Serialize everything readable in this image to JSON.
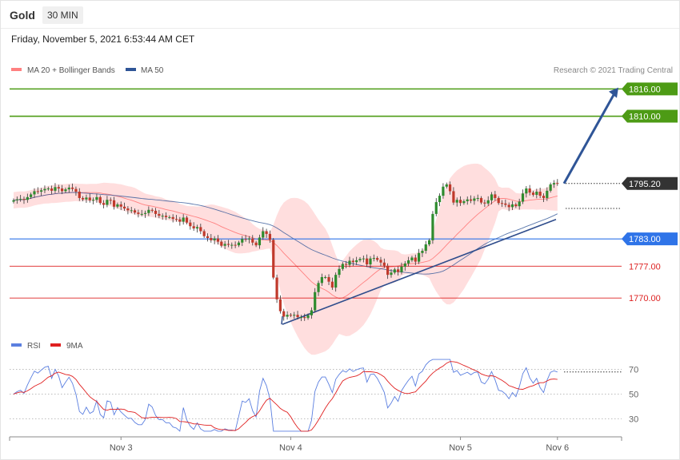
{
  "header": {
    "instrument": "Gold",
    "timeframe": "30 MIN",
    "datetime": "Friday, November 5, 2021 6:53:44 AM CET"
  },
  "legend": {
    "ma20": "MA 20 + Bollinger Bands",
    "ma50": "MA 50",
    "copyright": "Research © 2021 Trading Central",
    "rsi": "RSI",
    "rsi_ma": "9MA"
  },
  "colors": {
    "up": "#2e8b2e",
    "down": "#c0392b",
    "resistance": "#4d9b15",
    "support_blue": "#2f74e8",
    "support_red": "#dd2222",
    "ma20": "#ff8080",
    "ma50": "#2f5597",
    "band": "#ffdede",
    "rsi": "#5b7fe0",
    "rsi_ma": "#e02020"
  },
  "chart_data": {
    "type": "candlestick",
    "price_range": [
      1763,
      1818
    ],
    "levels": [
      {
        "value": 1816.0,
        "label": "1816.00",
        "kind": "resistance"
      },
      {
        "value": 1810.0,
        "label": "1810.00",
        "kind": "resistance"
      },
      {
        "value": 1795.2,
        "label": "1795.20",
        "kind": "last"
      },
      {
        "value": 1783.0,
        "label": "1783.00",
        "kind": "pivot"
      },
      {
        "value": 1777.0,
        "label": "1777.00",
        "kind": "support"
      },
      {
        "value": 1770.0,
        "label": "1770.00",
        "kind": "support"
      }
    ],
    "x_ticks": [
      {
        "index": 31,
        "label": "Nov 3"
      },
      {
        "index": 80,
        "label": "Nov 4"
      },
      {
        "index": 129,
        "label": "Nov 5"
      },
      {
        "index": 157,
        "label": "Nov 6"
      }
    ],
    "closes": [
      1791.5,
      1791.7,
      1791.8,
      1791.6,
      1792.2,
      1792.8,
      1793.5,
      1793.4,
      1793.7,
      1794.0,
      1794.1,
      1793.6,
      1794.4,
      1794.1,
      1793.5,
      1793.9,
      1794.3,
      1794.0,
      1793.4,
      1792.0,
      1791.7,
      1792.1,
      1791.5,
      1791.6,
      1792.2,
      1790.9,
      1790.5,
      1791.6,
      1791.5,
      1790.1,
      1790.6,
      1790.1,
      1789.7,
      1789.3,
      1789.3,
      1788.8,
      1788.5,
      1788.5,
      1788.7,
      1789.4,
      1789.2,
      1788.5,
      1788.1,
      1788.1,
      1787.8,
      1787.8,
      1787.4,
      1787.3,
      1786.8,
      1787.7,
      1786.6,
      1785.8,
      1785.3,
      1785.6,
      1784.7,
      1783.6,
      1783.2,
      1782.7,
      1783.1,
      1782.4,
      1781.5,
      1781.9,
      1781.7,
      1781.7,
      1781.6,
      1782.2,
      1783.0,
      1782.9,
      1783.1,
      1782.2,
      1781.6,
      1783.3,
      1784.7,
      1784.1,
      1782.8,
      1774.5,
      1769.7,
      1767.1,
      1765.9,
      1766.3,
      1766.2,
      1766.3,
      1765.8,
      1765.8,
      1765.6,
      1766.2,
      1767.3,
      1771.3,
      1773.3,
      1774.6,
      1774.6,
      1773.6,
      1772.3,
      1775.1,
      1776.4,
      1777.5,
      1777.3,
      1778.2,
      1777.9,
      1778.3,
      1778.6,
      1778.7,
      1777.4,
      1778.7,
      1778.8,
      1778.4,
      1777.8,
      1777.1,
      1775.1,
      1775.6,
      1776.3,
      1775.7,
      1776.9,
      1777.6,
      1778.3,
      1778.9,
      1778.0,
      1779.9,
      1780.4,
      1781.8,
      1782.7,
      1788.5,
      1791.1,
      1792.5,
      1794.5,
      1795.0,
      1793.5,
      1791.0,
      1791.6,
      1790.9,
      1791.3,
      1791.7,
      1791.4,
      1791.9,
      1792.0,
      1791.0,
      1790.8,
      1791.5,
      1792.8,
      1792.0,
      1790.9,
      1790.8,
      1790.5,
      1790.0,
      1790.6,
      1790.2,
      1791.2,
      1793.0,
      1794.1,
      1793.2,
      1792.7,
      1793.4,
      1792.5,
      1792.0,
      1793.6,
      1795.0,
      1795.3,
      1795.2
    ],
    "rsi": {
      "levels": [
        70,
        50,
        30
      ],
      "range": [
        18,
        80
      ]
    }
  }
}
